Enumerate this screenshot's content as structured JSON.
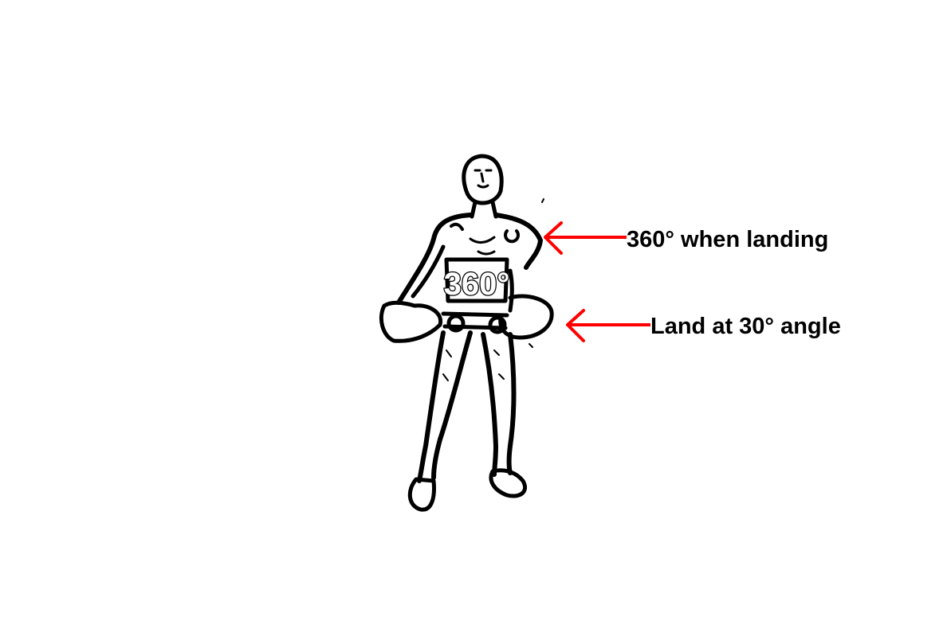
{
  "figure": {
    "bib_text": "360°",
    "icon": "athlete-figure-icon"
  },
  "annotations": [
    {
      "label": "360° when landing",
      "color": "#ff0000",
      "target": "shoulder"
    },
    {
      "label": "Land at 30° angle",
      "color": "#ff0000",
      "target": "hips"
    }
  ]
}
